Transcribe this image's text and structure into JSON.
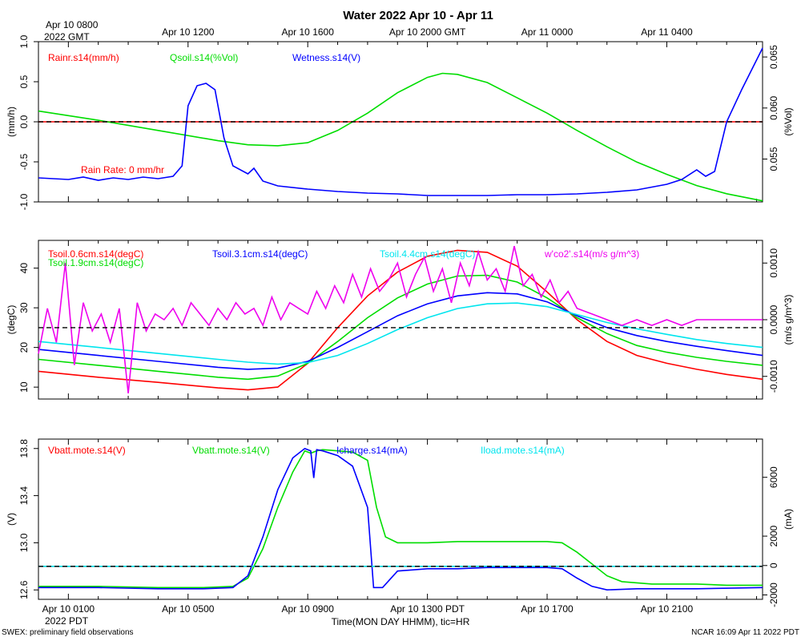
{
  "title": "Water 2022 Apr 10 - Apr 11",
  "top_axis": {
    "first_label_line1": "Apr 10 0800",
    "first_label_line2": "2022 GMT",
    "ticks": [
      "Apr 10 1200",
      "Apr 10 1600",
      "Apr 10 2000 GMT",
      "Apr 11 0000",
      "Apr 11 0400"
    ]
  },
  "bottom_axis": {
    "ticks": [
      "Apr 10 0100",
      "Apr 10 0500",
      "Apr 10 0900",
      "Apr 10 1300 PDT",
      "Apr 10 1700",
      "Apr 10 2100"
    ],
    "year_label": "2022 PDT",
    "xlabel": "Time(MON DAY HHMM), tic=HR"
  },
  "footer": {
    "left": "SWEX: preliminary field observations",
    "right": "NCAR 16:09 Apr 11 2022 PDT"
  },
  "colors": {
    "red": "#ff0000",
    "green": "#00dd00",
    "blue": "#0000ff",
    "cyan": "#00e5ee",
    "magenta": "#ee00ee"
  },
  "chart_data": [
    {
      "type": "line",
      "x_unit": "hours since Apr 10 00:00 PDT",
      "xlim": [
        0.0,
        24.2
      ],
      "left_axis": {
        "label": "(mm/h)",
        "ylim": [
          -1.0,
          1.0
        ],
        "ticks": [
          "-1.0",
          "-0.5",
          "0.0",
          "0.5",
          "1.0"
        ]
      },
      "right_axis": {
        "label": "(%Vol)",
        "ylim": [
          0.0508,
          0.0665
        ],
        "ticks": [
          "0.055",
          "0.060",
          "0.065"
        ]
      },
      "legend": [
        {
          "label": "Rainr.s14(mm/h)",
          "color": "red"
        },
        {
          "label": "Qsoil.s14(%Vol)",
          "color": "green"
        },
        {
          "label": "Wetness.s14(V)",
          "color": "blue"
        }
      ],
      "annotation": "Rain Rate: 0 mm/hr",
      "series": [
        {
          "name": "Rainr.s14(mm/h)",
          "axis": "left",
          "color": "red",
          "x": [
            0,
            24.2
          ],
          "y": [
            0.0,
            0.0
          ]
        },
        {
          "name": "Qsoil.s14(%Vol)",
          "axis": "right",
          "color": "green",
          "x": [
            0,
            2,
            4,
            6,
            7,
            8,
            9,
            10,
            11,
            12,
            13,
            13.5,
            14,
            15,
            16,
            17,
            18,
            19,
            20,
            21,
            22,
            23,
            24.2
          ],
          "y": [
            0.0597,
            0.0588,
            0.0578,
            0.0568,
            0.0564,
            0.0563,
            0.0566,
            0.0578,
            0.0595,
            0.0615,
            0.063,
            0.0634,
            0.0633,
            0.0625,
            0.061,
            0.0595,
            0.0578,
            0.0562,
            0.0547,
            0.0535,
            0.0524,
            0.0516,
            0.0509
          ]
        },
        {
          "name": "Wetness.s14(V)",
          "axis": "left",
          "color": "blue",
          "x": [
            0,
            0.5,
            1,
            1.5,
            2,
            2.5,
            3,
            3.5,
            4,
            4.5,
            4.8,
            5,
            5.3,
            5.6,
            5.9,
            6.2,
            6.5,
            7,
            7.2,
            7.5,
            8,
            9,
            10,
            11,
            12,
            13,
            14,
            15,
            16,
            17,
            18,
            19,
            20,
            21,
            21.5,
            22,
            22.3,
            22.6,
            23,
            23.5,
            24.2
          ],
          "y": [
            -0.7,
            -0.71,
            -0.72,
            -0.69,
            -0.73,
            -0.7,
            -0.72,
            -0.69,
            -0.71,
            -0.68,
            -0.55,
            0.2,
            0.45,
            0.48,
            0.4,
            -0.2,
            -0.55,
            -0.65,
            -0.58,
            -0.74,
            -0.8,
            -0.84,
            -0.87,
            -0.89,
            -0.9,
            -0.92,
            -0.92,
            -0.92,
            -0.91,
            -0.91,
            -0.9,
            -0.88,
            -0.85,
            -0.78,
            -0.72,
            -0.6,
            -0.68,
            -0.62,
            0.0,
            0.4,
            0.92
          ]
        }
      ]
    },
    {
      "type": "line",
      "x_unit": "hours since Apr 10 00:00 PDT",
      "xlim": [
        0.0,
        24.2
      ],
      "left_axis": {
        "label": "(degC)",
        "ylim": [
          7.0,
          47.0
        ],
        "ticks": [
          "10",
          "20",
          "30",
          "40"
        ]
      },
      "right_axis": {
        "label": "(m/s g/m^3)",
        "ylim": [
          -0.0014,
          0.0014
        ],
        "ticks": [
          "-0.0010",
          "0.0000",
          "0.0010"
        ]
      },
      "legend": [
        {
          "label": "Tsoil.0.6cm.s14(degC)",
          "color": "red"
        },
        {
          "label": "Tsoil.1.9cm.s14(degC)",
          "color": "green"
        },
        {
          "label": "Tsoil.3.1cm.s14(degC)",
          "color": "blue"
        },
        {
          "label": "Tsoil.4.4cm.s14(degC)",
          "color": "cyan"
        },
        {
          "label": "w'co2'.s14(m/s g/m^3)",
          "color": "magenta"
        }
      ],
      "series": [
        {
          "name": "Tsoil.0.6cm.s14(degC)",
          "axis": "left",
          "color": "red",
          "x": [
            0,
            2,
            4,
            6,
            7,
            8,
            9,
            10,
            11,
            12,
            13,
            14,
            15,
            16,
            17,
            18,
            19,
            20,
            21,
            22,
            23,
            24.2
          ],
          "y": [
            14.0,
            12.5,
            11.2,
            9.8,
            9.3,
            10.0,
            16.0,
            25.0,
            33.0,
            39.0,
            43.0,
            44.5,
            44.0,
            40.5,
            34.0,
            27.0,
            21.5,
            18.0,
            16.0,
            14.5,
            13.2,
            12.0
          ]
        },
        {
          "name": "Tsoil.1.9cm.s14(degC)",
          "axis": "left",
          "color": "green",
          "x": [
            0,
            2,
            4,
            6,
            7,
            8,
            9,
            10,
            11,
            12,
            13,
            14,
            15,
            16,
            17,
            18,
            19,
            20,
            21,
            22,
            23,
            24.2
          ],
          "y": [
            17.0,
            15.5,
            14.0,
            12.5,
            12.0,
            12.8,
            16.0,
            21.5,
            27.5,
            32.5,
            36.0,
            38.0,
            38.2,
            36.5,
            32.5,
            27.5,
            23.5,
            20.5,
            18.8,
            17.5,
            16.5,
            15.5
          ]
        },
        {
          "name": "Tsoil.3.1cm.s14(degC)",
          "axis": "left",
          "color": "blue",
          "x": [
            0,
            2,
            4,
            6,
            7,
            8,
            9,
            10,
            11,
            12,
            13,
            14,
            15,
            16,
            17,
            18,
            19,
            20,
            21,
            22,
            23,
            24.2
          ],
          "y": [
            19.5,
            18.0,
            16.5,
            15.0,
            14.5,
            14.8,
            16.5,
            20.0,
            24.0,
            28.0,
            31.0,
            33.0,
            33.8,
            33.5,
            31.5,
            28.0,
            25.0,
            23.0,
            21.5,
            20.3,
            19.2,
            18.0
          ]
        },
        {
          "name": "Tsoil.4.4cm.s14(degC)",
          "axis": "left",
          "color": "cyan",
          "x": [
            0,
            2,
            4,
            6,
            7,
            8,
            9,
            10,
            11,
            12,
            13,
            14,
            15,
            16,
            17,
            18,
            19,
            20,
            21,
            22,
            23,
            24.2
          ],
          "y": [
            21.5,
            20.0,
            18.5,
            17.0,
            16.3,
            15.8,
            16.2,
            18.0,
            21.0,
            24.5,
            27.5,
            29.8,
            31.0,
            31.2,
            30.3,
            28.3,
            26.3,
            24.7,
            23.3,
            22.0,
            21.0,
            20.0
          ]
        },
        {
          "name": "w'co2'.s14(m/s g/m^3)",
          "axis": "right",
          "color": "magenta",
          "x": [
            0,
            0.3,
            0.6,
            0.9,
            1.2,
            1.5,
            1.8,
            2.1,
            2.4,
            2.7,
            3.0,
            3.3,
            3.6,
            3.9,
            4.2,
            4.5,
            4.8,
            5.1,
            5.4,
            5.7,
            6.0,
            6.3,
            6.6,
            6.9,
            7.2,
            7.5,
            7.8,
            8.1,
            8.4,
            8.7,
            9.0,
            9.3,
            9.6,
            9.9,
            10.2,
            10.5,
            10.8,
            11.1,
            11.4,
            11.7,
            12.0,
            12.3,
            12.6,
            12.9,
            13.2,
            13.5,
            13.8,
            14.1,
            14.4,
            14.7,
            15.0,
            15.3,
            15.6,
            15.9,
            16.2,
            16.5,
            16.8,
            17.1,
            17.4,
            17.7,
            18.0,
            18.5,
            19.0,
            19.5,
            20.0,
            20.5,
            21.0,
            21.5,
            22.0,
            22.5,
            23.0,
            23.5,
            24.2
          ],
          "y": [
            -0.0006,
            0.0002,
            -0.0004,
            0.001,
            -0.0008,
            0.0003,
            -0.0002,
            0.0001,
            -0.0004,
            0.0002,
            -0.0013,
            0.0003,
            -0.0002,
            0.0001,
            0.0,
            0.0002,
            -0.0001,
            0.0003,
            0.0001,
            -0.0001,
            0.0002,
            0.0,
            0.0003,
            0.0001,
            0.0002,
            -0.0001,
            0.0004,
            0.0,
            0.0003,
            0.0002,
            0.0001,
            0.0005,
            0.0002,
            0.0006,
            0.0003,
            0.0008,
            0.0004,
            0.0009,
            0.0005,
            0.0007,
            0.001,
            0.0004,
            0.0008,
            0.0011,
            0.0005,
            0.0009,
            0.0003,
            0.001,
            0.0006,
            0.0012,
            0.0007,
            0.0009,
            0.0005,
            0.0013,
            0.0006,
            0.0008,
            0.0004,
            0.0007,
            0.0003,
            0.0005,
            0.0002,
            0.0001,
            0.0,
            -0.0001,
            0.0,
            -0.0001,
            0.0,
            -0.0001,
            0.0,
            0.0,
            0.0,
            0.0,
            0.0
          ]
        }
      ],
      "reference_line_degC": 25.0
    },
    {
      "type": "line",
      "x_unit": "hours since Apr 10 00:00 PDT",
      "xlim": [
        0.0,
        24.2
      ],
      "left_axis": {
        "label": "(V)",
        "ylim": [
          12.52,
          13.88
        ],
        "ticks": [
          "12.6",
          "13.0",
          "13.4",
          "13.8"
        ]
      },
      "right_axis": {
        "label": "(mA)",
        "ylim": [
          -2300,
          8600
        ],
        "ticks": [
          "-2000",
          "0",
          "2000",
          "6000"
        ]
      },
      "legend": [
        {
          "label": "Vbatt.mote.s14(V)",
          "color": "red"
        },
        {
          "label": "Vbatt.mote.s14(V)",
          "color": "green"
        },
        {
          "label": "Icharge.s14(mA)",
          "color": "blue"
        },
        {
          "label": "Iload.mote.s14(mA)",
          "color": "cyan"
        }
      ],
      "series": [
        {
          "name": "Vbatt.mote.s14(V)",
          "axis": "left",
          "color": "green",
          "x": [
            0,
            2,
            4,
            5.5,
            6.5,
            7.0,
            7.5,
            8.0,
            8.5,
            8.9,
            9.1,
            9.3,
            9.5,
            10.0,
            10.5,
            11.0,
            11.3,
            11.6,
            12.0,
            13,
            14,
            15,
            16,
            17,
            17.5,
            18.0,
            18.5,
            19.0,
            19.5,
            20.5,
            22,
            23,
            24.2
          ],
          "y": [
            12.63,
            12.63,
            12.62,
            12.62,
            12.63,
            12.7,
            12.95,
            13.3,
            13.6,
            13.78,
            13.76,
            13.78,
            13.79,
            13.78,
            13.77,
            13.7,
            13.3,
            13.05,
            13.0,
            13.0,
            13.01,
            13.01,
            13.01,
            13.01,
            13.0,
            12.92,
            12.82,
            12.72,
            12.67,
            12.65,
            12.65,
            12.64,
            12.64
          ]
        },
        {
          "name": "Icharge.s14(mA)",
          "axis": "left",
          "color": "blue",
          "x": [
            0,
            2,
            4,
            5.5,
            6.5,
            7.0,
            7.5,
            8.0,
            8.5,
            8.9,
            9.1,
            9.2,
            9.3,
            9.5,
            10.0,
            10.5,
            11.0,
            11.2,
            11.5,
            12.0,
            13,
            14,
            15,
            16,
            17,
            17.5,
            18.0,
            18.5,
            19.0,
            20,
            22,
            24.2
          ],
          "y": [
            12.62,
            12.62,
            12.61,
            12.61,
            12.62,
            12.72,
            13.05,
            13.45,
            13.72,
            13.8,
            13.78,
            13.55,
            13.79,
            13.78,
            13.74,
            13.65,
            13.3,
            12.62,
            12.62,
            12.76,
            12.78,
            12.78,
            12.79,
            12.79,
            12.79,
            12.78,
            12.7,
            12.63,
            12.6,
            12.61,
            12.61,
            12.62
          ]
        },
        {
          "name": "Vbatt.mote.s14(V) red",
          "axis": "left",
          "color": "red",
          "x": [
            0,
            24.2
          ],
          "y": [
            12.8,
            12.8
          ]
        },
        {
          "name": "Iload.mote.s14(mA)",
          "axis": "left",
          "color": "cyan",
          "x": [
            0,
            24.2
          ],
          "y": [
            12.8,
            12.8
          ]
        }
      ]
    }
  ]
}
